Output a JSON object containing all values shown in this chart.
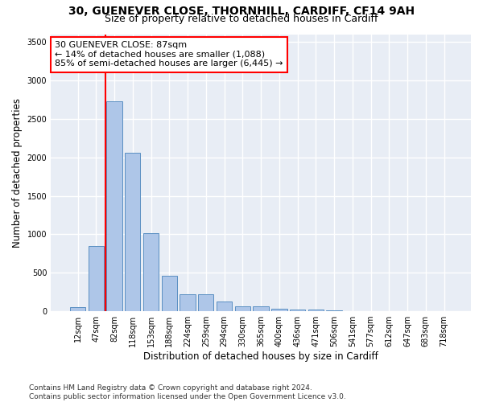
{
  "title_line1": "30, GUENEVER CLOSE, THORNHILL, CARDIFF, CF14 9AH",
  "title_line2": "Size of property relative to detached houses in Cardiff",
  "xlabel": "Distribution of detached houses by size in Cardiff",
  "ylabel": "Number of detached properties",
  "bar_color": "#aec6e8",
  "bar_edge_color": "#5a8fc2",
  "background_color": "#e8edf5",
  "grid_color": "#ffffff",
  "categories": [
    "12sqm",
    "47sqm",
    "82sqm",
    "118sqm",
    "153sqm",
    "188sqm",
    "224sqm",
    "259sqm",
    "294sqm",
    "330sqm",
    "365sqm",
    "400sqm",
    "436sqm",
    "471sqm",
    "506sqm",
    "541sqm",
    "577sqm",
    "612sqm",
    "647sqm",
    "683sqm",
    "718sqm"
  ],
  "values": [
    55,
    850,
    2730,
    2060,
    1010,
    460,
    220,
    220,
    130,
    65,
    60,
    35,
    25,
    20,
    10,
    5,
    2,
    1,
    1,
    0,
    0
  ],
  "annotation_text": "30 GUENEVER CLOSE: 87sqm\n← 14% of detached houses are smaller (1,088)\n85% of semi-detached houses are larger (6,445) →",
  "vline_bar_index": 2,
  "ylim": [
    0,
    3600
  ],
  "yticks": [
    0,
    500,
    1000,
    1500,
    2000,
    2500,
    3000,
    3500
  ],
  "footer_line1": "Contains HM Land Registry data © Crown copyright and database right 2024.",
  "footer_line2": "Contains public sector information licensed under the Open Government Licence v3.0.",
  "title_fontsize": 10,
  "subtitle_fontsize": 9,
  "axis_label_fontsize": 8.5,
  "tick_fontsize": 7,
  "annotation_fontsize": 8,
  "footer_fontsize": 6.5
}
